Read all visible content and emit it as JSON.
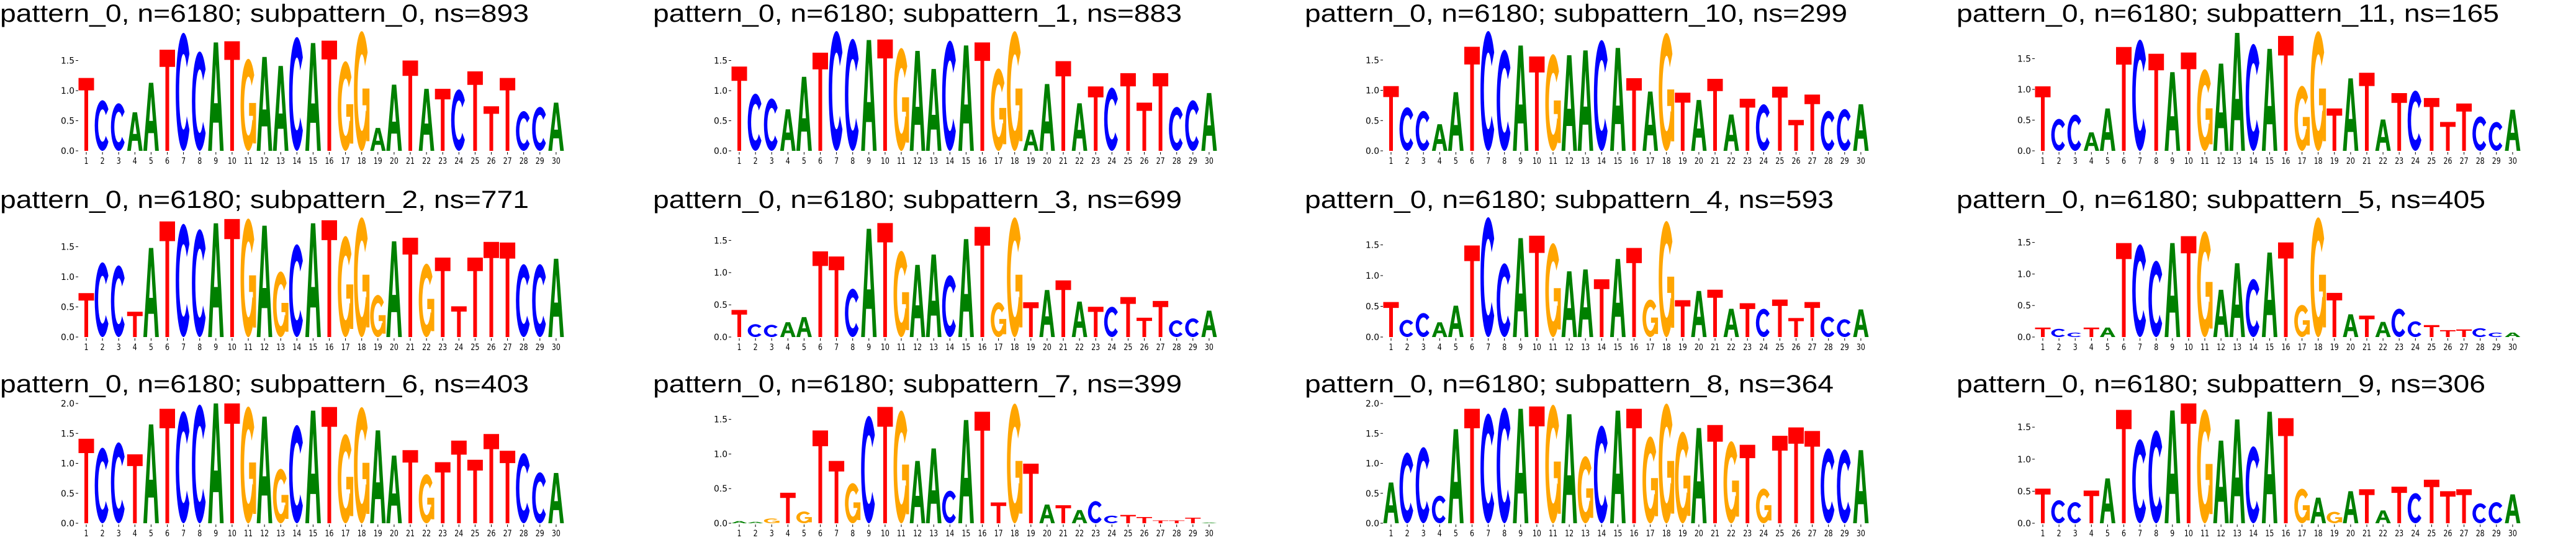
{
  "letter_colors": {
    "A": "#008000",
    "C": "#0000ff",
    "G": "#ffa500",
    "T": "#ff0000"
  },
  "grid": {
    "rows": 3,
    "cols": 4
  },
  "chart_data": [
    {
      "type": "sequence-logo",
      "title": "pattern_0, n=6180; subpattern_0, ns=893",
      "yticks": [
        "0.0",
        "0.5",
        "1.0",
        "1.5"
      ],
      "xticks": [
        1,
        2,
        3,
        4,
        5,
        6,
        7,
        8,
        9,
        10,
        11,
        12,
        13,
        14,
        15,
        16,
        17,
        18,
        19,
        20,
        21,
        22,
        23,
        24,
        25,
        26,
        27,
        28,
        29,
        30
      ],
      "consensus": "TCCAATCCATGAACATGGAATATCTTTCCA",
      "heights": [
        1.21,
        0.84,
        0.79,
        0.64,
        1.13,
        1.68,
        1.96,
        1.65,
        1.8,
        1.82,
        1.53,
        1.56,
        1.41,
        1.89,
        1.79,
        1.83,
        1.49,
        1.99,
        0.38,
        1.1,
        1.5,
        1.03,
        1.03,
        1.02,
        1.32,
        0.74,
        1.21,
        0.66,
        0.73,
        0.8
      ]
    },
    {
      "type": "sequence-logo",
      "title": "pattern_0, n=6180; subpattern_1, ns=883",
      "yticks": [
        "0.0",
        "0.5",
        "1.0",
        "1.5"
      ],
      "xticks": [
        1,
        2,
        3,
        4,
        5,
        6,
        7,
        8,
        9,
        10,
        11,
        12,
        13,
        14,
        15,
        16,
        17,
        18,
        19,
        20,
        21,
        22,
        23,
        24,
        25,
        26,
        27,
        28,
        29,
        30
      ],
      "consensus": "TCCAATCCATGAACATGGAATATCTTTCCA",
      "heights": [
        1.4,
        0.95,
        0.87,
        0.69,
        1.23,
        1.63,
        1.99,
        1.86,
        1.84,
        1.85,
        1.71,
        1.66,
        1.36,
        1.83,
        1.75,
        1.8,
        1.37,
        1.99,
        0.35,
        1.11,
        1.49,
        0.79,
        1.07,
        1.05,
        1.29,
        0.8,
        1.29,
        0.73,
        0.84,
        0.96
      ]
    },
    {
      "type": "sequence-logo",
      "title": "pattern_0, n=6180; subpattern_10, ns=299",
      "yticks": [
        "0.0",
        "0.5",
        "1.0",
        "1.5"
      ],
      "xticks": [
        1,
        2,
        3,
        4,
        5,
        6,
        7,
        8,
        9,
        10,
        11,
        12,
        13,
        14,
        15,
        16,
        17,
        18,
        19,
        20,
        21,
        22,
        23,
        24,
        25,
        26,
        27,
        28,
        29,
        30
      ],
      "consensus": "TCCAATCCATGAACATAGTATATCTTTCCA",
      "heights": [
        1.07,
        0.72,
        0.66,
        0.44,
        0.97,
        1.72,
        1.98,
        1.67,
        1.74,
        1.56,
        1.6,
        1.58,
        1.66,
        1.83,
        1.7,
        1.2,
        0.98,
        1.95,
        0.96,
        0.84,
        1.19,
        0.6,
        0.86,
        0.77,
        1.06,
        0.51,
        0.93,
        0.66,
        0.69,
        0.77
      ]
    },
    {
      "type": "sequence-logo",
      "title": "pattern_0, n=6180; subpattern_11, ns=165",
      "yticks": [
        "0.0",
        "0.5",
        "1.0",
        "1.5"
      ],
      "xticks": [
        1,
        2,
        3,
        4,
        5,
        6,
        7,
        8,
        9,
        10,
        11,
        12,
        13,
        14,
        15,
        16,
        17,
        18,
        19,
        20,
        21,
        22,
        23,
        24,
        25,
        26,
        27,
        28,
        29,
        30
      ],
      "consensus": "TCCAATCTATGAACATGGTATATCTTTCCA",
      "heights": [
        1.05,
        0.52,
        0.59,
        0.3,
        0.69,
        1.69,
        1.81,
        1.58,
        1.28,
        1.6,
        1.33,
        1.42,
        1.92,
        1.74,
        1.66,
        1.87,
        1.06,
        1.95,
        0.69,
        1.18,
        1.27,
        0.51,
        0.94,
        0.98,
        0.86,
        0.47,
        0.77,
        0.56,
        0.47,
        0.67
      ]
    },
    {
      "type": "sequence-logo",
      "title": "pattern_0, n=6180; subpattern_2, ns=771",
      "yticks": [
        "0.0",
        "0.5",
        "1.0",
        "1.5"
      ],
      "xticks": [
        1,
        2,
        3,
        4,
        5,
        6,
        7,
        8,
        9,
        10,
        11,
        12,
        13,
        14,
        15,
        16,
        17,
        18,
        19,
        20,
        21,
        22,
        23,
        24,
        25,
        26,
        27,
        28,
        29,
        30
      ],
      "consensus": "TCCTATCCATGAGCATGGGATGTTTTTCCA",
      "heights": [
        0.73,
        1.24,
        1.19,
        0.42,
        1.48,
        1.92,
        1.88,
        1.79,
        1.89,
        1.96,
        1.97,
        1.85,
        1.09,
        1.54,
        1.89,
        1.94,
        1.68,
        1.99,
        0.7,
        1.59,
        1.65,
        1.22,
        1.32,
        0.51,
        1.32,
        1.58,
        1.57,
        1.21,
        1.21,
        1.3
      ]
    },
    {
      "type": "sequence-logo",
      "title": "pattern_0, n=6180; subpattern_3, ns=699",
      "yticks": [
        "0.0",
        "0.5",
        "1.0",
        "1.5"
      ],
      "xticks": [
        1,
        2,
        3,
        4,
        5,
        6,
        7,
        8,
        9,
        10,
        11,
        12,
        13,
        14,
        15,
        16,
        17,
        18,
        19,
        20,
        21,
        22,
        23,
        24,
        25,
        26,
        27,
        28,
        29,
        30
      ],
      "consensus": "TCCAATTCATGAACATGGTATATCTTTCCA",
      "heights": [
        0.42,
        0.2,
        0.19,
        0.23,
        0.31,
        1.33,
        1.25,
        0.75,
        1.68,
        1.77,
        1.34,
        1.12,
        1.28,
        0.96,
        1.52,
        1.71,
        0.54,
        1.86,
        0.54,
        0.73,
        0.88,
        0.55,
        0.47,
        0.47,
        0.62,
        0.3,
        0.56,
        0.26,
        0.29,
        0.41
      ]
    },
    {
      "type": "sequence-logo",
      "title": "pattern_0, n=6180; subpattern_4, ns=593",
      "yticks": [
        "0.0",
        "0.5",
        "1.0",
        "1.5"
      ],
      "xticks": [
        1,
        2,
        3,
        4,
        5,
        6,
        7,
        8,
        9,
        10,
        11,
        12,
        13,
        14,
        15,
        16,
        17,
        18,
        19,
        20,
        21,
        22,
        23,
        24,
        25,
        26,
        27,
        28,
        29,
        30
      ],
      "consensus": "TCCAATCCATGAATATGGTATATCTTTCCA",
      "heights": [
        0.57,
        0.28,
        0.39,
        0.24,
        0.51,
        1.49,
        1.95,
        1.2,
        1.61,
        1.65,
        1.53,
        1.07,
        1.1,
        0.94,
        1.27,
        1.45,
        0.61,
        1.89,
        0.6,
        0.75,
        0.77,
        0.46,
        0.55,
        0.46,
        0.61,
        0.31,
        0.57,
        0.33,
        0.29,
        0.45
      ]
    },
    {
      "type": "sequence-logo",
      "title": "pattern_0, n=6180; subpattern_5, ns=405",
      "yticks": [
        "0.0",
        "0.5",
        "1.0",
        "1.5"
      ],
      "xticks": [
        1,
        2,
        3,
        4,
        5,
        6,
        7,
        8,
        9,
        10,
        11,
        12,
        13,
        14,
        15,
        16,
        17,
        18,
        19,
        20,
        21,
        22,
        23,
        24,
        25,
        26,
        27,
        28,
        29,
        30
      ],
      "consensus": "TCCTATCCATGAACATGGTATACCTTTCCA",
      "heights": [
        0.15,
        0.13,
        0.07,
        0.15,
        0.15,
        1.49,
        1.47,
        1.21,
        1.49,
        1.6,
        1.68,
        0.75,
        1.17,
        0.92,
        1.34,
        1.5,
        0.51,
        1.9,
        0.7,
        0.36,
        0.34,
        0.24,
        0.45,
        0.25,
        0.19,
        0.11,
        0.12,
        0.14,
        0.07,
        0.07
      ]
    },
    {
      "type": "sequence-logo",
      "title": "pattern_0, n=6180; subpattern_6, ns=403",
      "yticks": [
        "0.0",
        "0.5",
        "1.0",
        "1.5",
        "2.0"
      ],
      "xticks": [
        1,
        2,
        3,
        4,
        5,
        6,
        7,
        8,
        9,
        10,
        11,
        12,
        13,
        14,
        15,
        16,
        17,
        18,
        19,
        20,
        21,
        22,
        23,
        24,
        25,
        26,
        27,
        28,
        29,
        30
      ],
      "consensus": "TCCTATCCATGAGCATGGAATGTTTTTCCA",
      "heights": [
        1.41,
        1.26,
        1.35,
        1.15,
        1.65,
        1.91,
        1.87,
        1.98,
        2.0,
        2.0,
        1.95,
        1.78,
        0.91,
        1.64,
        1.88,
        1.94,
        1.49,
        1.94,
        1.55,
        1.13,
        1.22,
        0.82,
        1.02,
        1.38,
        1.06,
        1.49,
        1.21,
        1.17,
        0.85,
        0.84
      ]
    },
    {
      "type": "sequence-logo",
      "title": "pattern_0, n=6180; subpattern_7, ns=399",
      "yticks": [
        "0.0",
        "0.5",
        "1.0",
        "1.5"
      ],
      "xticks": [
        1,
        2,
        3,
        4,
        5,
        6,
        7,
        8,
        9,
        10,
        11,
        12,
        13,
        14,
        15,
        16,
        17,
        18,
        19,
        20,
        21,
        22,
        23,
        24,
        25,
        26,
        27,
        28,
        29,
        30
      ],
      "consensus": "AAGTGTTGCTGAACATTGTATACCTTTTTA",
      "heights": [
        0.03,
        0.02,
        0.07,
        0.44,
        0.17,
        1.34,
        0.9,
        0.58,
        1.55,
        1.68,
        1.63,
        0.9,
        1.08,
        0.47,
        1.49,
        1.61,
        0.3,
        1.73,
        0.86,
        0.27,
        0.26,
        0.19,
        0.32,
        0.11,
        0.12,
        0.09,
        0.04,
        0.04,
        0.08,
        0.01
      ]
    },
    {
      "type": "sequence-logo",
      "title": "pattern_0, n=6180; subpattern_8, ns=364",
      "yticks": [
        "0.0",
        "0.5",
        "1.0",
        "1.5",
        "2.0"
      ],
      "xticks": [
        1,
        2,
        3,
        4,
        5,
        6,
        7,
        8,
        9,
        10,
        11,
        12,
        13,
        14,
        15,
        16,
        17,
        18,
        19,
        20,
        21,
        22,
        23,
        24,
        25,
        26,
        27,
        28,
        29,
        30
      ],
      "consensus": "ACCCATCCATGAGCATGGGATGTGTTTCCA",
      "heights": [
        0.68,
        1.18,
        1.27,
        0.46,
        1.57,
        1.91,
        1.83,
        1.93,
        1.91,
        1.95,
        1.98,
        1.82,
        1.12,
        1.63,
        1.88,
        1.91,
        1.45,
        2.0,
        1.53,
        1.59,
        1.64,
        1.37,
        1.31,
        0.58,
        1.46,
        1.6,
        1.54,
        1.25,
        1.23,
        1.22
      ]
    },
    {
      "type": "sequence-logo",
      "title": "pattern_0, n=6180; subpattern_9, ns=306",
      "yticks": [
        "0.0",
        "0.5",
        "1.0",
        "1.5"
      ],
      "xticks": [
        1,
        2,
        3,
        4,
        5,
        6,
        7,
        8,
        9,
        10,
        11,
        12,
        13,
        14,
        15,
        16,
        17,
        18,
        19,
        20,
        21,
        22,
        23,
        24,
        25,
        26,
        27,
        28,
        29,
        30
      ],
      "consensus": "TCCTATCCATGAACATGAGATATCTTTCCA",
      "heights": [
        0.54,
        0.36,
        0.33,
        0.51,
        0.7,
        1.77,
        1.31,
        1.45,
        1.76,
        1.87,
        1.78,
        1.29,
        1.62,
        1.2,
        1.74,
        1.64,
        0.54,
        0.4,
        0.18,
        0.5,
        0.53,
        0.2,
        0.57,
        0.47,
        0.68,
        0.5,
        0.53,
        0.31,
        0.33,
        0.45
      ]
    }
  ]
}
